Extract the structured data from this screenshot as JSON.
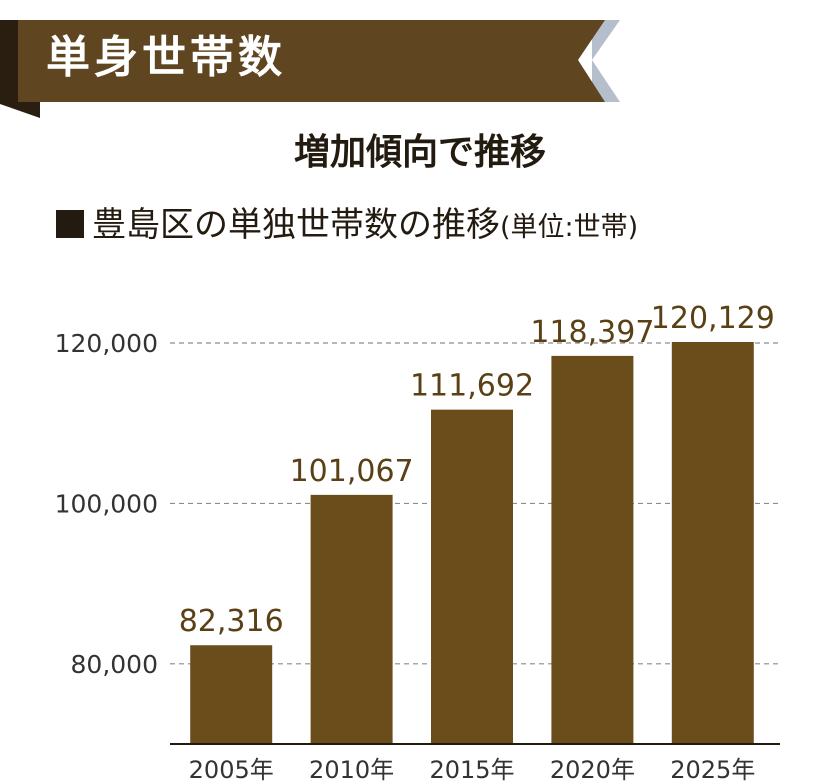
{
  "banner": {
    "title": "単身世帯数"
  },
  "heading": "増加傾向で推移",
  "subheading": {
    "title": "豊島区の単独世帯数の推移",
    "unit": "(単位:世帯)"
  },
  "colors": {
    "bar": "#6b4c1b",
    "banner": "#5f4520",
    "banner_dark": "#2a1e10",
    "label": "#5a4015",
    "accent": "#b5bfcc"
  },
  "chart_data": {
    "type": "bar",
    "title": "豊島区の単独世帯数の推移",
    "unit": "世帯",
    "categories": [
      "2005年",
      "2010年",
      "2015年",
      "2020年",
      "2025年"
    ],
    "values": [
      82316,
      101067,
      111692,
      118397,
      120129
    ],
    "value_labels": [
      "82,316",
      "101,067",
      "111,692",
      "118,397",
      "120,129"
    ],
    "yticks": [
      80000,
      100000,
      120000
    ],
    "ytick_labels": [
      "80,000",
      "100,000",
      "120,000"
    ],
    "ylim": [
      70000,
      120129
    ],
    "grid": "dashed horizontal",
    "legend": "none"
  }
}
